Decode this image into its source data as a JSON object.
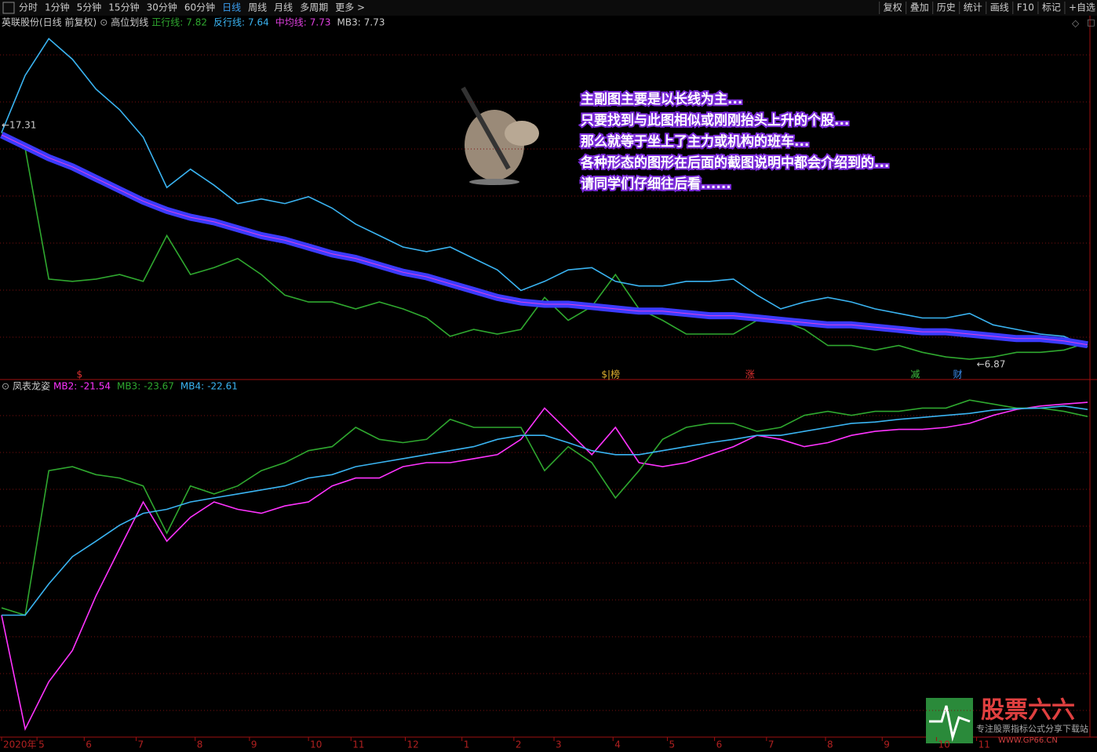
{
  "toolbar": {
    "periods": [
      "分时",
      "1分钟",
      "5分钟",
      "15分钟",
      "30分钟",
      "60分钟",
      "日线",
      "周线",
      "月线",
      "多周期",
      "更多 >"
    ],
    "active_period": 6,
    "tools": [
      "复权",
      "叠加",
      "历史",
      "统计",
      "画线",
      "F10",
      "标记",
      "+自选"
    ]
  },
  "x_axis": {
    "xlim": [
      0,
      460
    ],
    "days": [
      0,
      10,
      20,
      30,
      40,
      50,
      60,
      70,
      80,
      90,
      100,
      110,
      120,
      130,
      140,
      150,
      160,
      170,
      180,
      190,
      200,
      210,
      220,
      230,
      240,
      250,
      260,
      270,
      280,
      290,
      300,
      310,
      320,
      330,
      340,
      350,
      360,
      370,
      380,
      390,
      400,
      410,
      420,
      430,
      440,
      450,
      460
    ],
    "ticks": [
      {
        "value": 0,
        "label": "2020年"
      },
      {
        "value": 15,
        "label": "5"
      },
      {
        "value": 35,
        "label": "6"
      },
      {
        "value": 57,
        "label": "7"
      },
      {
        "value": 82,
        "label": "8"
      },
      {
        "value": 105,
        "label": "9"
      },
      {
        "value": 130,
        "label": "10"
      },
      {
        "value": 148,
        "label": "11"
      },
      {
        "value": 171,
        "label": "12"
      },
      {
        "value": 195,
        "label": "1"
      },
      {
        "value": 217,
        "label": "2"
      },
      {
        "value": 234,
        "label": "3"
      },
      {
        "value": 259,
        "label": "4"
      },
      {
        "value": 282,
        "label": "5"
      },
      {
        "value": 302,
        "label": "6"
      },
      {
        "value": 324,
        "label": "7"
      },
      {
        "value": 349,
        "label": "8"
      },
      {
        "value": 373,
        "label": "9"
      },
      {
        "value": 396,
        "label": "10"
      },
      {
        "value": 413,
        "label": "11"
      }
    ]
  },
  "main_panel": {
    "title": "英联股份(日线 前复权)",
    "indicator": "高位划线",
    "ylim": [
      6.35,
      21.42
    ],
    "series": [
      {
        "label": "正行线:",
        "color": "#2fa82f",
        "values": [
          17.0,
          16.3,
          10.6,
          10.5,
          10.6,
          10.8,
          10.5,
          12.5,
          10.8,
          11.1,
          11.5,
          10.8,
          9.9,
          9.6,
          9.6,
          9.3,
          9.6,
          9.3,
          8.9,
          8.1,
          8.4,
          8.2,
          8.4,
          9.8,
          8.8,
          9.4,
          10.8,
          9.3,
          8.8,
          8.2,
          8.2,
          8.2,
          8.8,
          8.8,
          8.4,
          7.7,
          7.7,
          7.5,
          7.7,
          7.4,
          7.2,
          7.1,
          7.2,
          7.4,
          7.4,
          7.5,
          7.82
        ]
      },
      {
        "label": "反行线:",
        "color": "#3ab4f2",
        "values": [
          17.0,
          19.5,
          21.1,
          20.2,
          18.9,
          18.0,
          16.8,
          14.6,
          15.4,
          14.7,
          13.9,
          14.1,
          13.9,
          14.2,
          13.7,
          13.0,
          12.5,
          12.0,
          11.8,
          12.0,
          11.5,
          11.0,
          10.1,
          10.5,
          11.0,
          11.1,
          10.5,
          10.3,
          10.3,
          10.5,
          10.5,
          10.6,
          9.9,
          9.3,
          9.6,
          9.8,
          9.6,
          9.3,
          9.1,
          8.9,
          8.9,
          9.1,
          8.6,
          8.4,
          8.2,
          8.1,
          7.64
        ]
      },
      {
        "label": "中均线:",
        "color": "#e040e0",
        "band_color": "#3b3bff",
        "values": [
          16.9,
          16.4,
          15.9,
          15.5,
          15.0,
          14.5,
          14.0,
          13.6,
          13.3,
          13.1,
          12.8,
          12.5,
          12.3,
          12.0,
          11.7,
          11.5,
          11.2,
          10.9,
          10.7,
          10.4,
          10.1,
          9.8,
          9.6,
          9.5,
          9.5,
          9.4,
          9.3,
          9.2,
          9.2,
          9.1,
          9.0,
          9.0,
          8.9,
          8.8,
          8.7,
          8.6,
          8.6,
          8.5,
          8.4,
          8.3,
          8.3,
          8.2,
          8.1,
          8.0,
          8.0,
          7.9,
          7.73
        ]
      },
      {
        "label": "MB3:",
        "color": "#cccccc",
        "value": 7.73
      }
    ],
    "price_markers": [
      {
        "label": "←17.31",
        "day": 0,
        "value": 17.31
      },
      {
        "label": "←6.87",
        "day": 413,
        "value": 6.87
      }
    ],
    "signals": [
      {
        "label": "$",
        "day": 33,
        "color": "#e03030"
      },
      {
        "label": "$|榜",
        "day": 258,
        "color": "#e0b030"
      },
      {
        "label": "涨",
        "day": 317,
        "color": "#e03030"
      },
      {
        "label": "减",
        "day": 387,
        "color": "#40c040"
      },
      {
        "label": "财",
        "day": 405,
        "color": "#3a8ff2"
      }
    ],
    "annotation": [
      "主副图主要是以长线为主...",
      "只要找到与此图相似或刚刚抬头上升的个股...",
      "那么就等于坐上了主力或机构的班车...",
      "各种形态的图形在后面的截图说明中都会介绍到的...",
      "请同学们仔细往后看......"
    ]
  },
  "sub_panel": {
    "title": "凤表龙姿",
    "ylim": [
      -72.4,
      -20
    ],
    "series": [
      {
        "label": "MB2:",
        "color": "#ff33ff",
        "values": [
          -53.5,
          -70.6,
          -63.5,
          -58.8,
          -50.6,
          -43.5,
          -36.5,
          -42.4,
          -38.8,
          -36.5,
          -37.6,
          -38.2,
          -37.1,
          -36.5,
          -34.1,
          -32.9,
          -32.9,
          -31.2,
          -30.6,
          -30.6,
          -30.0,
          -29.4,
          -27.1,
          -22.4,
          -25.9,
          -29.4,
          -25.3,
          -30.6,
          -31.2,
          -30.6,
          -29.4,
          -28.2,
          -26.5,
          -27.1,
          -28.2,
          -27.6,
          -26.5,
          -25.9,
          -25.6,
          -25.6,
          -25.3,
          -24.7,
          -23.5,
          -22.6,
          -22.1,
          -21.8,
          -21.54
        ]
      },
      {
        "label": "MB3:",
        "color": "#2fa82f",
        "values": [
          -52.4,
          -53.5,
          -31.8,
          -31.2,
          -32.4,
          -32.9,
          -34.1,
          -41.2,
          -34.1,
          -35.3,
          -34.1,
          -31.8,
          -30.6,
          -28.8,
          -28.2,
          -25.3,
          -27.1,
          -27.6,
          -27.1,
          -24.1,
          -25.3,
          -25.3,
          -25.3,
          -31.8,
          -28.2,
          -30.6,
          -35.9,
          -31.8,
          -27.1,
          -25.3,
          -24.7,
          -24.7,
          -25.9,
          -25.3,
          -23.5,
          -22.9,
          -23.5,
          -22.9,
          -22.9,
          -22.4,
          -22.4,
          -21.2,
          -21.8,
          -22.4,
          -22.4,
          -22.9,
          -23.67
        ]
      },
      {
        "label": "MB4:",
        "color": "#3ab4f2",
        "values": [
          -53.5,
          -53.5,
          -48.8,
          -44.7,
          -42.4,
          -40.0,
          -38.2,
          -37.6,
          -36.5,
          -35.9,
          -35.3,
          -34.7,
          -34.1,
          -32.9,
          -32.4,
          -31.2,
          -30.6,
          -30.0,
          -29.4,
          -28.8,
          -28.2,
          -27.1,
          -26.5,
          -26.5,
          -27.6,
          -28.8,
          -29.4,
          -29.4,
          -28.8,
          -28.2,
          -27.6,
          -27.1,
          -26.5,
          -26.5,
          -25.9,
          -25.3,
          -24.7,
          -24.5,
          -24.1,
          -23.8,
          -23.5,
          -23.2,
          -22.7,
          -22.5,
          -22.4,
          -22.1,
          -22.61
        ]
      }
    ]
  },
  "watermark": {
    "title": "股票六六",
    "slogan": "专注股票指标公式分享下载站",
    "url": "WWW.GP66.CN"
  }
}
